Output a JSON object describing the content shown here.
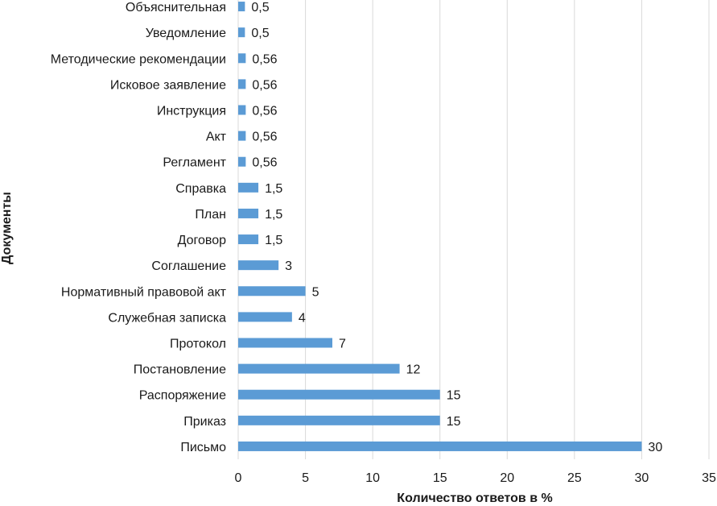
{
  "chart_data": {
    "type": "bar",
    "orientation": "horizontal",
    "categories": [
      "Письмо",
      "Приказ",
      "Распоряжение",
      "Постановление",
      "Протокол",
      "Служебная записка",
      "Нормативный правовой акт",
      "Соглашение",
      "Договор",
      "План",
      "Справка",
      "Регламент",
      "Акт",
      "Инструкция",
      "Исковое заявление",
      "Методические рекомендации",
      "Уведомление",
      "Объяснительная"
    ],
    "values": [
      30,
      15,
      15,
      12,
      7,
      4,
      5,
      3,
      1.5,
      1.5,
      1.5,
      0.56,
      0.56,
      0.56,
      0.56,
      0.56,
      0.5,
      0.5
    ],
    "value_labels": [
      "30",
      "15",
      "15",
      "12",
      "7",
      "4",
      "5",
      "3",
      "1,5",
      "1,5",
      "1,5",
      "0,56",
      "0,56",
      "0,56",
      "0,56",
      "0,56",
      "0,5",
      "0,5"
    ],
    "xlim": [
      0,
      35
    ],
    "xticks": [
      0,
      5,
      10,
      15,
      20,
      25,
      30,
      35
    ],
    "xlabel": "Количество ответов в %",
    "ylabel": "Документы",
    "grid": "vertical",
    "bar_color": "#5b9bd5",
    "grid_color": "#d9d9d9"
  }
}
